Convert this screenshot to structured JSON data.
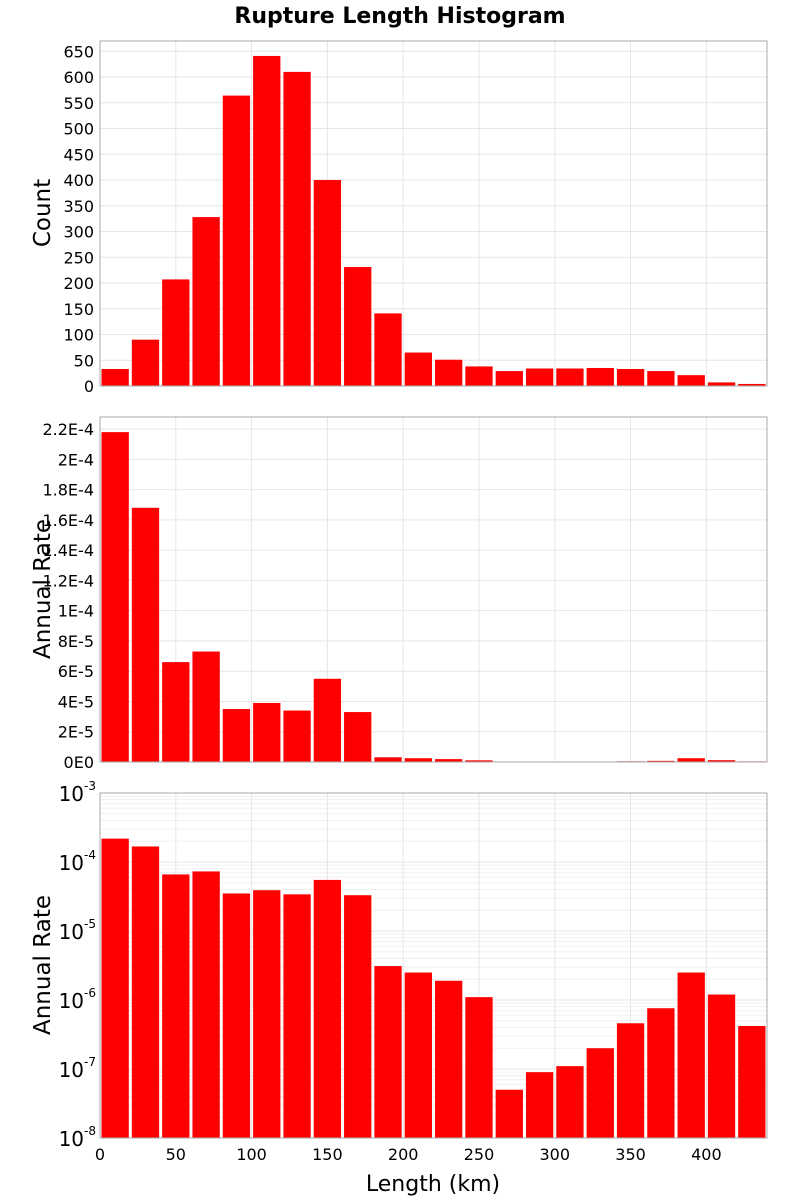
{
  "chart_data": {
    "title": "Rupture Length Histogram",
    "type": "bar",
    "x": [
      10,
      30,
      50,
      70,
      90,
      110,
      130,
      150,
      170,
      190,
      210,
      230,
      250,
      270,
      290,
      310,
      330,
      350,
      370,
      390,
      410,
      430
    ],
    "xlabel": "Length (km)",
    "xlim": [
      0,
      440
    ],
    "xticks": [
      0,
      50,
      100,
      150,
      200,
      250,
      300,
      350,
      400
    ],
    "bar_color": "#ff0000",
    "grid": true,
    "panels": [
      {
        "ylabel": "Count",
        "scale": "linear",
        "ylim": [
          0,
          670
        ],
        "yticks": [
          0,
          50,
          100,
          150,
          200,
          250,
          300,
          350,
          400,
          450,
          500,
          550,
          600,
          650
        ],
        "yticklabels": [
          "0",
          "50",
          "100",
          "150",
          "200",
          "250",
          "300",
          "350",
          "400",
          "450",
          "500",
          "550",
          "600",
          "650"
        ],
        "values": [
          33,
          90,
          207,
          328,
          564,
          641,
          610,
          400,
          231,
          141,
          65,
          51,
          38,
          29,
          34,
          34,
          35,
          33,
          29,
          21,
          7,
          4
        ]
      },
      {
        "ylabel": "Annual Rate",
        "scale": "linear",
        "ylim": [
          0,
          0.000228
        ],
        "yticks": [
          0,
          2e-05,
          4e-05,
          6e-05,
          8e-05,
          0.0001,
          0.00012,
          0.00014,
          0.00016,
          0.00018,
          0.0002,
          0.00022
        ],
        "yticklabels": [
          "0E0",
          "2E-5",
          "4E-5",
          "6E-5",
          "8E-5",
          "1E-4",
          "1.2E-4",
          "1.4E-4",
          "1.6E-4",
          "1.8E-4",
          "2E-4",
          "2.2E-4"
        ],
        "values": [
          0.000218,
          0.000168,
          6.6e-05,
          7.3e-05,
          3.5e-05,
          3.9e-05,
          3.4e-05,
          5.5e-05,
          3.3e-05,
          3.1e-06,
          2.5e-06,
          1.9e-06,
          1.1e-06,
          5e-08,
          9e-08,
          1.1e-07,
          2e-07,
          4.6e-07,
          7.6e-07,
          2.5e-06,
          1.2e-06,
          4.2e-07
        ]
      },
      {
        "ylabel": "Annual Rate",
        "scale": "log",
        "ylim": [
          1e-08,
          0.001
        ],
        "yticks": [
          1e-08,
          1e-07,
          1e-06,
          1e-05,
          0.0001,
          0.001
        ],
        "yticklabels": [
          [
            "10",
            "-8"
          ],
          [
            "10",
            "-7"
          ],
          [
            "10",
            "-6"
          ],
          [
            "10",
            "-5"
          ],
          [
            "10",
            "-4"
          ],
          [
            "10",
            "-3"
          ]
        ],
        "values": [
          0.000218,
          0.000168,
          6.6e-05,
          7.3e-05,
          3.5e-05,
          3.9e-05,
          3.4e-05,
          5.5e-05,
          3.3e-05,
          3.1e-06,
          2.5e-06,
          1.9e-06,
          1.1e-06,
          5e-08,
          9e-08,
          1.1e-07,
          2e-07,
          4.6e-07,
          7.6e-07,
          2.5e-06,
          1.2e-06,
          4.2e-07
        ]
      }
    ]
  }
}
